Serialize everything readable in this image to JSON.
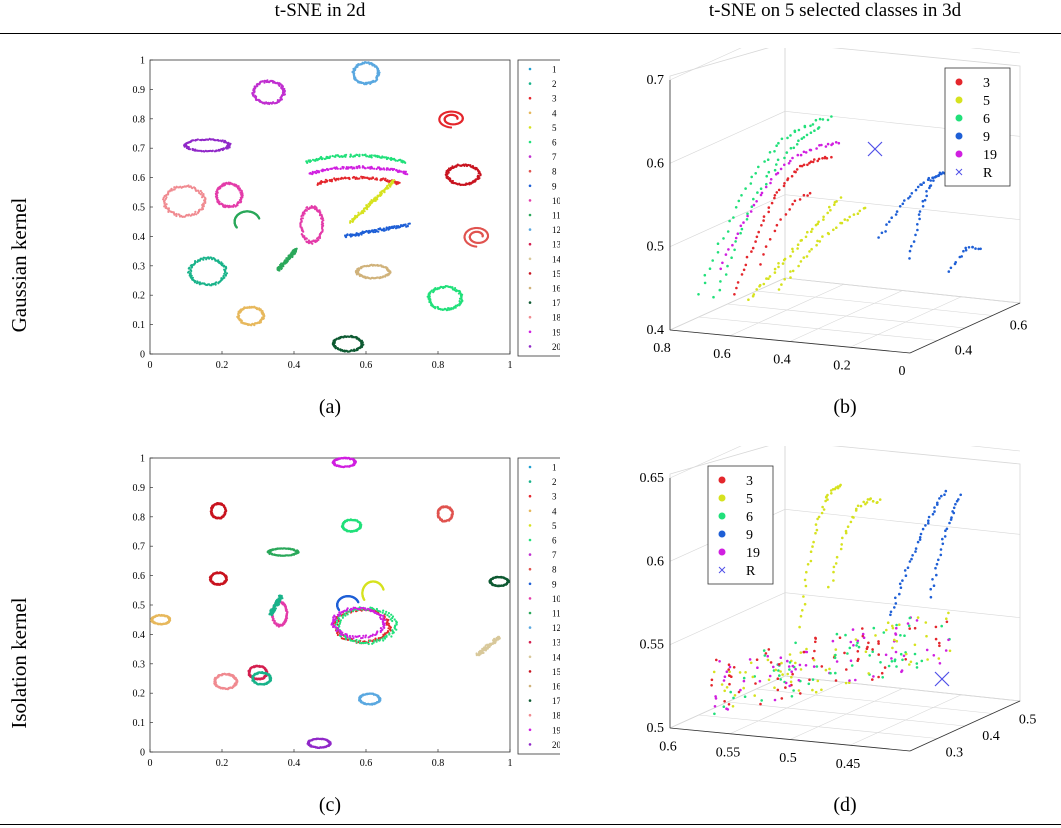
{
  "columns": [
    "t-SNE in 2d",
    "t-SNE on 5 selected classes in 3d"
  ],
  "rows": [
    "Gaussian kernel",
    "Isolation kernel"
  ],
  "captions": [
    "(a)",
    "(b)",
    "(c)",
    "(d)"
  ],
  "colors": {
    "1": "#1f9fd0",
    "2": "#19b38a",
    "3": "#e4262c",
    "4": "#e7b85c",
    "5": "#d6e21f",
    "6": "#21e07a",
    "7": "#c02fd0",
    "8": "#e0534f",
    "9": "#1e5fd6",
    "10": "#e33ba9",
    "11": "#2aa85a",
    "12": "#5aa8e0",
    "13": "#d41f4f",
    "14": "#d8c89a",
    "15": "#c8131f",
    "16": "#d0b27a",
    "17": "#0e5a32",
    "18": "#f08a90",
    "19": "#d01fe0",
    "20": "#9028c8",
    "R": "#5050e8"
  },
  "chart_data": [
    {
      "type": "scatter",
      "title": "",
      "xlim": [
        0,
        1
      ],
      "ylim": [
        0,
        1
      ],
      "xticks": [
        "0",
        "0.2",
        "0.4",
        "0.6",
        "0.8",
        "1"
      ],
      "yticks": [
        "0",
        "0.1",
        "0.2",
        "0.3",
        "0.4",
        "0.5",
        "0.6",
        "0.7",
        "0.8",
        "0.9",
        "1"
      ],
      "legend": [
        "1",
        "2",
        "3",
        "4",
        "5",
        "6",
        "7",
        "8",
        "9",
        "10",
        "11",
        "12",
        "13",
        "14",
        "15",
        "16",
        "17",
        "18",
        "19",
        "20"
      ],
      "legend_position": "right",
      "clusters": [
        {
          "cls": "12",
          "shape": "ring",
          "cx": 0.6,
          "cy": 0.955,
          "rx": 0.035,
          "ry": 0.035
        },
        {
          "cls": "7",
          "shape": "ring",
          "cx": 0.33,
          "cy": 0.89,
          "rx": 0.042,
          "ry": 0.038
        },
        {
          "cls": "3",
          "shape": "spiral",
          "cx": 0.84,
          "cy": 0.8,
          "rx": 0.04,
          "ry": 0.03
        },
        {
          "cls": "20",
          "shape": "ring",
          "cx": 0.16,
          "cy": 0.71,
          "rx": 0.06,
          "ry": 0.02
        },
        {
          "cls": "6",
          "shape": "arc",
          "cx": 0.57,
          "cy": 0.62,
          "rx": 0.17,
          "ry": 0.1
        },
        {
          "cls": "19",
          "shape": "arc",
          "cx": 0.58,
          "cy": 0.58,
          "rx": 0.17,
          "ry": 0.1
        },
        {
          "cls": "3",
          "shape": "arc",
          "cx": 0.58,
          "cy": 0.55,
          "rx": 0.14,
          "ry": 0.09
        },
        {
          "cls": "15",
          "shape": "ring",
          "cx": 0.87,
          "cy": 0.61,
          "rx": 0.045,
          "ry": 0.033
        },
        {
          "cls": "18",
          "shape": "ring",
          "cx": 0.095,
          "cy": 0.52,
          "rx": 0.055,
          "ry": 0.05
        },
        {
          "cls": "10",
          "shape": "ring",
          "cx": 0.22,
          "cy": 0.54,
          "rx": 0.035,
          "ry": 0.04
        },
        {
          "cls": "11",
          "shape": "arc2",
          "cx": 0.27,
          "cy": 0.45,
          "rx": 0.035,
          "ry": 0.035
        },
        {
          "cls": "10",
          "shape": "ring",
          "cx": 0.45,
          "cy": 0.44,
          "rx": 0.03,
          "ry": 0.06
        },
        {
          "cls": "5",
          "shape": "line",
          "cx": 0.62,
          "cy": 0.52,
          "rx": 0.06,
          "ry": 0.07
        },
        {
          "cls": "9",
          "shape": "line",
          "cx": 0.63,
          "cy": 0.42,
          "rx": 0.09,
          "ry": 0.02
        },
        {
          "cls": "8",
          "shape": "spiral",
          "cx": 0.91,
          "cy": 0.4,
          "rx": 0.04,
          "ry": 0.035
        },
        {
          "cls": "11",
          "shape": "line",
          "cx": 0.38,
          "cy": 0.32,
          "rx": 0.025,
          "ry": 0.035
        },
        {
          "cls": "2",
          "shape": "ring",
          "cx": 0.16,
          "cy": 0.28,
          "rx": 0.05,
          "ry": 0.045
        },
        {
          "cls": "16",
          "shape": "ring",
          "cx": 0.62,
          "cy": 0.28,
          "rx": 0.045,
          "ry": 0.022
        },
        {
          "cls": "6",
          "shape": "ring",
          "cx": 0.82,
          "cy": 0.19,
          "rx": 0.045,
          "ry": 0.038
        },
        {
          "cls": "4",
          "shape": "ring",
          "cx": 0.28,
          "cy": 0.13,
          "rx": 0.035,
          "ry": 0.03
        },
        {
          "cls": "17",
          "shape": "ring",
          "cx": 0.55,
          "cy": 0.035,
          "rx": 0.04,
          "ry": 0.025
        }
      ]
    },
    {
      "type": "scatter",
      "title": "",
      "zticks": [
        "0.4",
        "0.5",
        "0.6",
        "0.7"
      ],
      "xticks": [
        "0.8",
        "0.6",
        "0.4",
        "0.2",
        "0"
      ],
      "yticks": [
        "0.4",
        "0.6"
      ],
      "legend": [
        "3",
        "5",
        "6",
        "9",
        "19",
        "R"
      ],
      "legend_position": "top-right"
    },
    {
      "type": "scatter",
      "title": "",
      "xlim": [
        0,
        1
      ],
      "ylim": [
        0,
        1
      ],
      "xticks": [
        "0",
        "0.2",
        "0.4",
        "0.6",
        "0.8",
        "1"
      ],
      "yticks": [
        "0",
        "0.1",
        "0.2",
        "0.3",
        "0.4",
        "0.5",
        "0.6",
        "0.7",
        "0.8",
        "0.9",
        "1"
      ],
      "legend": [
        "1",
        "2",
        "3",
        "4",
        "5",
        "6",
        "7",
        "8",
        "9",
        "10",
        "11",
        "12",
        "13",
        "14",
        "15",
        "16",
        "17",
        "18",
        "19",
        "20"
      ],
      "legend_position": "right",
      "clusters": [
        {
          "cls": "19",
          "shape": "ring",
          "cx": 0.54,
          "cy": 0.985,
          "rx": 0.03,
          "ry": 0.015
        },
        {
          "cls": "15",
          "shape": "ring",
          "cx": 0.19,
          "cy": 0.82,
          "rx": 0.02,
          "ry": 0.025
        },
        {
          "cls": "8",
          "shape": "ring",
          "cx": 0.82,
          "cy": 0.81,
          "rx": 0.02,
          "ry": 0.025
        },
        {
          "cls": "6",
          "shape": "ring",
          "cx": 0.56,
          "cy": 0.77,
          "rx": 0.025,
          "ry": 0.02
        },
        {
          "cls": "11",
          "shape": "ring",
          "cx": 0.37,
          "cy": 0.68,
          "rx": 0.04,
          "ry": 0.012
        },
        {
          "cls": "15",
          "shape": "ring",
          "cx": 0.19,
          "cy": 0.59,
          "rx": 0.022,
          "ry": 0.02
        },
        {
          "cls": "17",
          "shape": "ring",
          "cx": 0.97,
          "cy": 0.58,
          "rx": 0.025,
          "ry": 0.015
        },
        {
          "cls": "5",
          "shape": "arc2",
          "cx": 0.62,
          "cy": 0.54,
          "rx": 0.03,
          "ry": 0.04
        },
        {
          "cls": "9",
          "shape": "arc2",
          "cx": 0.55,
          "cy": 0.5,
          "rx": 0.03,
          "ry": 0.03
        },
        {
          "cls": "10",
          "shape": "ring",
          "cx": 0.36,
          "cy": 0.47,
          "rx": 0.02,
          "ry": 0.04
        },
        {
          "cls": "2",
          "shape": "line",
          "cx": 0.35,
          "cy": 0.5,
          "rx": 0.015,
          "ry": 0.03
        },
        {
          "cls": "4",
          "shape": "ring",
          "cx": 0.03,
          "cy": 0.45,
          "rx": 0.025,
          "ry": 0.015
        },
        {
          "cls": "3",
          "shape": "ring",
          "cx": 0.59,
          "cy": 0.43,
          "rx": 0.075,
          "ry": 0.055
        },
        {
          "cls": "6",
          "shape": "ring",
          "cx": 0.6,
          "cy": 0.43,
          "rx": 0.08,
          "ry": 0.058
        },
        {
          "cls": "19",
          "shape": "ring",
          "cx": 0.58,
          "cy": 0.44,
          "rx": 0.07,
          "ry": 0.05
        },
        {
          "cls": "14",
          "shape": "line",
          "cx": 0.94,
          "cy": 0.36,
          "rx": 0.03,
          "ry": 0.03
        },
        {
          "cls": "13",
          "shape": "ring",
          "cx": 0.3,
          "cy": 0.27,
          "rx": 0.025,
          "ry": 0.022
        },
        {
          "cls": "2",
          "shape": "ring",
          "cx": 0.31,
          "cy": 0.25,
          "rx": 0.025,
          "ry": 0.02
        },
        {
          "cls": "18",
          "shape": "ring",
          "cx": 0.21,
          "cy": 0.24,
          "rx": 0.03,
          "ry": 0.025
        },
        {
          "cls": "12",
          "shape": "ring",
          "cx": 0.61,
          "cy": 0.18,
          "rx": 0.028,
          "ry": 0.018
        },
        {
          "cls": "20",
          "shape": "ring",
          "cx": 0.47,
          "cy": 0.03,
          "rx": 0.03,
          "ry": 0.015
        }
      ]
    },
    {
      "type": "scatter",
      "title": "",
      "zticks": [
        "0.5",
        "0.55",
        "0.6",
        "0.65"
      ],
      "xticks": [
        "0.6",
        "0.55",
        "0.5",
        "0.45"
      ],
      "yticks": [
        "0.3",
        "0.4",
        "0.5"
      ],
      "legend": [
        "3",
        "5",
        "6",
        "9",
        "19",
        "R"
      ],
      "legend_position": "top-left"
    }
  ]
}
